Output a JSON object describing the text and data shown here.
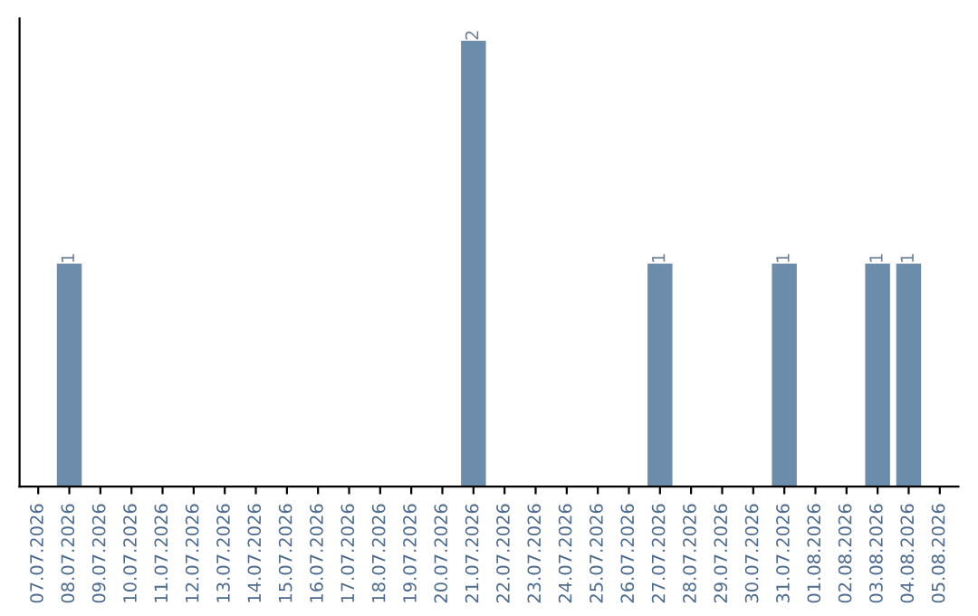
{
  "chart_data": {
    "type": "bar",
    "categories": [
      "07.07.2026",
      "08.07.2026",
      "09.07.2026",
      "10.07.2026",
      "11.07.2026",
      "12.07.2026",
      "13.07.2026",
      "14.07.2026",
      "15.07.2026",
      "16.07.2026",
      "17.07.2026",
      "18.07.2026",
      "19.07.2026",
      "20.07.2026",
      "21.07.2026",
      "22.07.2026",
      "23.07.2026",
      "24.07.2026",
      "25.07.2026",
      "26.07.2026",
      "27.07.2026",
      "28.07.2026",
      "29.07.2026",
      "30.07.2026",
      "31.07.2026",
      "01.08.2026",
      "02.08.2026",
      "03.08.2026",
      "04.08.2026",
      "05.08.2026"
    ],
    "values": [
      0,
      1,
      0,
      0,
      0,
      0,
      0,
      0,
      0,
      0,
      0,
      0,
      0,
      0,
      2,
      0,
      0,
      0,
      0,
      0,
      1,
      0,
      0,
      0,
      1,
      0,
      0,
      1,
      1,
      0
    ],
    "value_labels": [
      null,
      "1",
      null,
      null,
      null,
      null,
      null,
      null,
      null,
      null,
      null,
      null,
      null,
      null,
      "2",
      null,
      null,
      null,
      null,
      null,
      "1",
      null,
      null,
      null,
      "1",
      null,
      null,
      "1",
      "1",
      null
    ],
    "color": "#6b8caa",
    "tick_labels": "x",
    "grid": false
  }
}
